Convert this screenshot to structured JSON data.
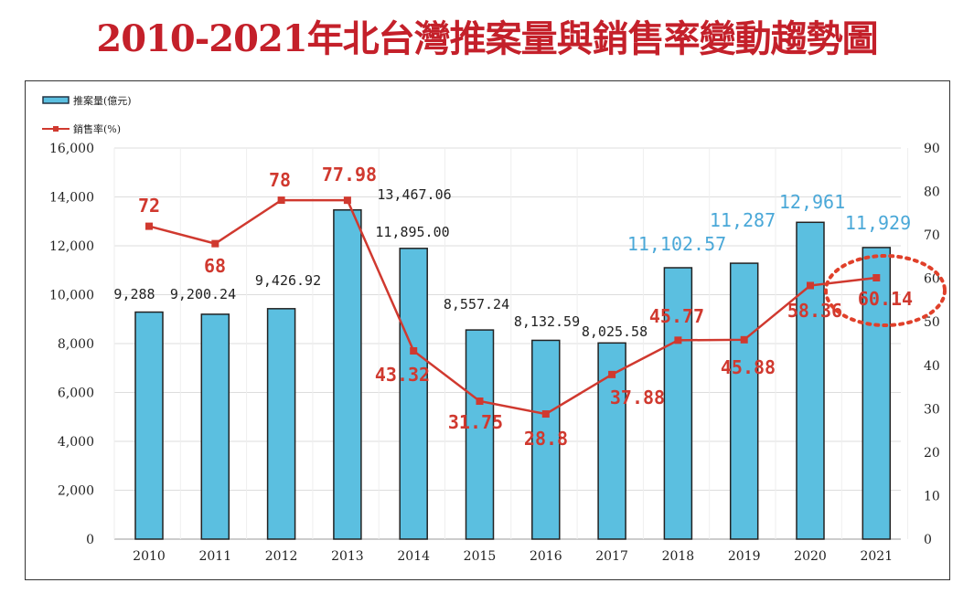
{
  "title": "2010-2021年北台灣推案量與銷售率變動趨勢圖",
  "chart_data": {
    "type": "bar+line",
    "title": "2010-2021年北台灣推案量與銷售率變動趨勢圖",
    "categories": [
      "2010",
      "2011",
      "2012",
      "2013",
      "2014",
      "2015",
      "2016",
      "2017",
      "2018",
      "2019",
      "2020",
      "2021"
    ],
    "series": [
      {
        "name": "推案量(億元)",
        "type": "bar",
        "axis": "left",
        "color": "#5bbfe0",
        "values": [
          9288,
          9200.24,
          9426.92,
          13467.06,
          11895.0,
          8557.24,
          8132.59,
          8025.58,
          11102.57,
          11287,
          12961,
          11929
        ],
        "labels": [
          "9,288",
          "9,200.24",
          "9,426.92",
          "13,467.06",
          "11,895.00",
          "8,557.24",
          "8,132.59",
          "8,025.58",
          "11,102.57",
          "11,287",
          "12,961",
          "11,929"
        ]
      },
      {
        "name": "銷售率(%)",
        "type": "line",
        "axis": "right",
        "color": "#d0392f",
        "values": [
          72,
          68,
          78,
          77.98,
          43.32,
          31.75,
          28.8,
          37.88,
          45.77,
          45.88,
          58.36,
          60.14
        ],
        "labels": [
          "72",
          "68",
          "78",
          "77.98",
          "43.32",
          "31.75",
          "28.8",
          "37.88",
          "45.77",
          "45.88",
          "58.36",
          "60.14"
        ]
      }
    ],
    "y_left": {
      "range": [
        0,
        16000
      ],
      "ticks": [
        "0",
        "2,000",
        "4,000",
        "6,000",
        "8,000",
        "10,000",
        "12,000",
        "14,000",
        "16,000"
      ]
    },
    "y_right": {
      "range": [
        0,
        90
      ],
      "ticks": [
        "0",
        "10",
        "20",
        "30",
        "40",
        "50",
        "60",
        "70",
        "80",
        "90"
      ]
    },
    "highlight_label_color": "#4aa8d8",
    "annotation": "dotted red circle around 2021 sales rate",
    "grid": true,
    "legend_position": "top-left"
  }
}
